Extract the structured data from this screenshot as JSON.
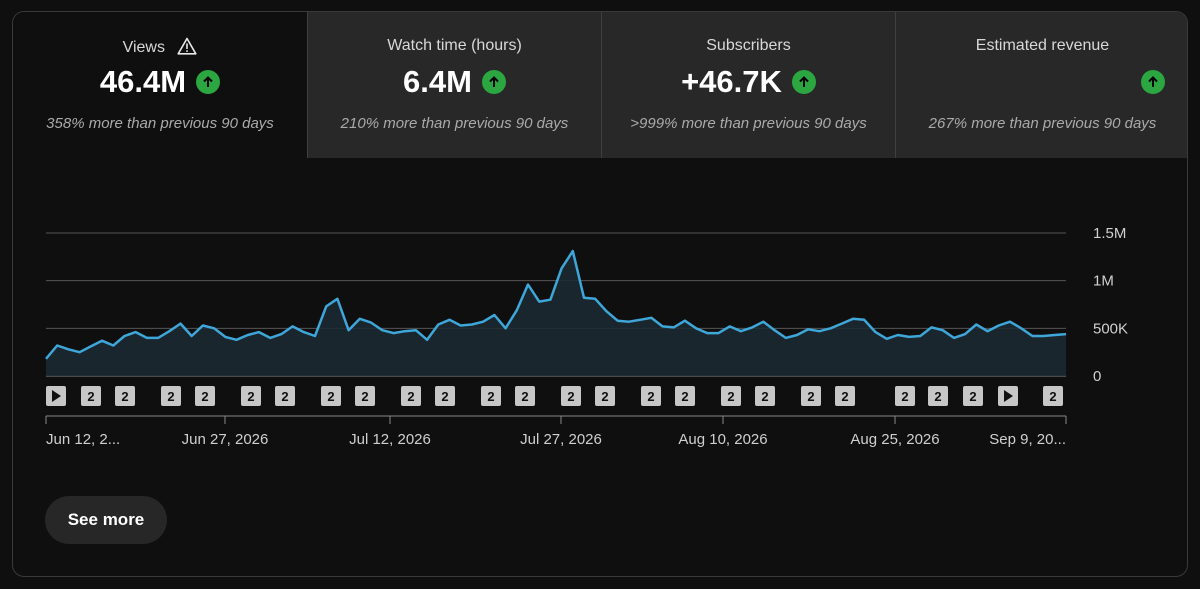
{
  "tabs": [
    {
      "title": "Views",
      "value": "46.4M",
      "note": "358% more than previous 90 days",
      "warning_icon": "warning-icon",
      "trend_icon": "arrow-up-icon"
    },
    {
      "title": "Watch time (hours)",
      "value": "6.4M",
      "note": "210% more than previous 90 days",
      "trend_icon": "arrow-up-icon"
    },
    {
      "title": "Subscribers",
      "value": "+46.7K",
      "note": ">999% more than previous 90 days",
      "trend_icon": "arrow-up-icon"
    },
    {
      "title": "Estimated revenue",
      "value": "",
      "note": "267% more than previous 90 days",
      "trend_icon": "arrow-up-icon"
    }
  ],
  "colors": {
    "line": "#3ea6d8",
    "up": "#2ba640",
    "active_tab": "#0f0f0f",
    "inactive_tab": "#282828"
  },
  "chart_data": {
    "type": "area",
    "y_ticks": [
      "1.5M",
      "1M",
      "500K",
      "0"
    ],
    "ylim": [
      0,
      1500000
    ],
    "x_ticks": [
      "Jun 12, 2...",
      "Jun 27, 2026",
      "Jul 12, 2026",
      "Jul 27, 2026",
      "Aug 10, 2026",
      "Aug 25, 2026",
      "Sep 9, 20..."
    ],
    "grid": true,
    "values": [
      180000,
      320000,
      280000,
      250000,
      310000,
      370000,
      320000,
      420000,
      460000,
      400000,
      400000,
      470000,
      550000,
      420000,
      530000,
      500000,
      410000,
      380000,
      430000,
      460000,
      400000,
      440000,
      520000,
      460000,
      420000,
      730000,
      810000,
      480000,
      600000,
      560000,
      480000,
      450000,
      470000,
      480000,
      380000,
      540000,
      590000,
      530000,
      540000,
      570000,
      640000,
      500000,
      690000,
      960000,
      780000,
      800000,
      1130000,
      1310000,
      820000,
      810000,
      680000,
      580000,
      570000,
      590000,
      610000,
      520000,
      510000,
      580000,
      500000,
      450000,
      450000,
      520000,
      470000,
      510000,
      570000,
      480000,
      400000,
      430000,
      490000,
      470000,
      500000,
      550000,
      600000,
      590000,
      460000,
      390000,
      430000,
      410000,
      420000,
      510000,
      480000,
      400000,
      440000,
      540000,
      470000,
      530000,
      570000,
      500000,
      420000,
      420000,
      430000,
      440000
    ],
    "markers": [
      "play",
      "2",
      "2",
      "2",
      "2",
      "2",
      "2",
      "2",
      "2",
      "2",
      "2",
      "2",
      "2",
      "2",
      "2",
      "2",
      "2",
      "2",
      "2",
      "2",
      "2",
      "2",
      "2",
      "2",
      "play",
      "2",
      "2",
      "2"
    ]
  },
  "buttons": {
    "see_more": "See more"
  }
}
